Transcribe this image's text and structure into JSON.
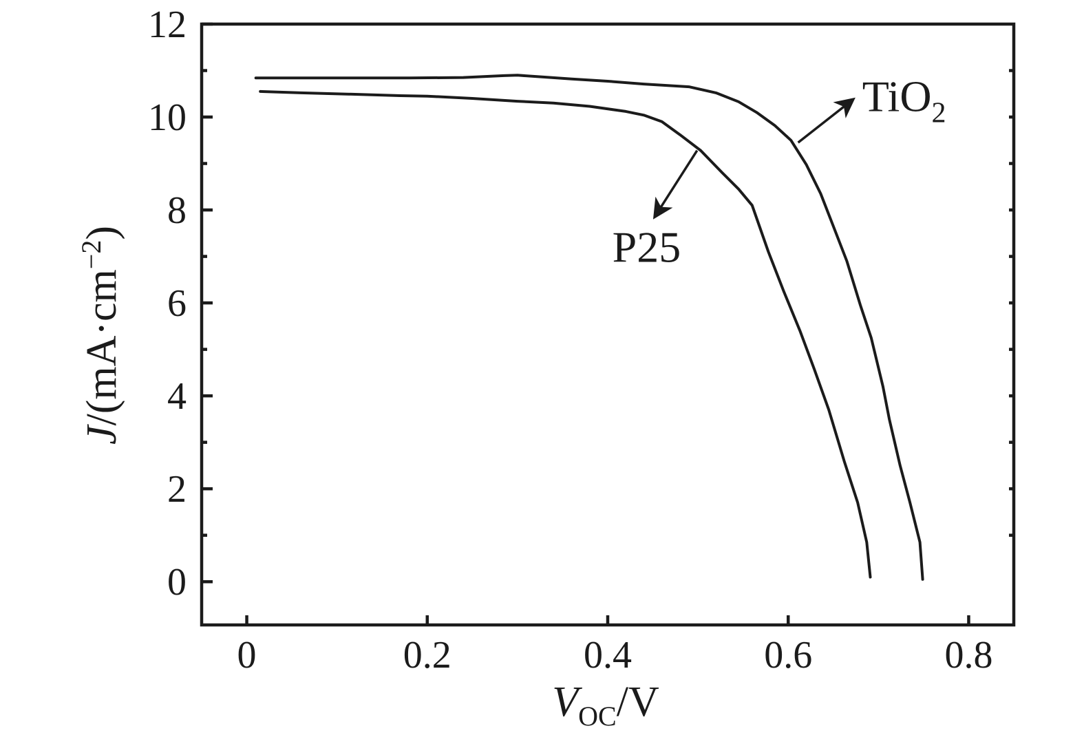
{
  "figure": {
    "background_color": "#ffffff",
    "ink_color": "#1b1b1b",
    "description": "J-V characteristic curves of dye-sensitized solar cells comparing TiO2 and P25 photoanodes"
  },
  "chart_data": {
    "type": "line",
    "title": "",
    "xlabel_parts": {
      "var": "V",
      "sub": "OC",
      "rest": "/V"
    },
    "ylabel_parts": {
      "var": "J",
      "pre": "/(mA·cm",
      "sup": "−2",
      "post": ")"
    },
    "xlim": [
      -0.05,
      0.85
    ],
    "ylim": [
      -0.93,
      12
    ],
    "grid": false,
    "legend_position": "none",
    "x_ticks": [
      {
        "v": 0.0,
        "label": "0"
      },
      {
        "v": 0.2,
        "label": "0.2"
      },
      {
        "v": 0.4,
        "label": "0.4"
      },
      {
        "v": 0.6,
        "label": "0.6"
      },
      {
        "v": 0.8,
        "label": "0.8"
      }
    ],
    "y_ticks": [
      {
        "v": 0,
        "label": "0"
      },
      {
        "v": 2,
        "label": "2"
      },
      {
        "v": 4,
        "label": "4"
      },
      {
        "v": 6,
        "label": "6"
      },
      {
        "v": 8,
        "label": "8"
      },
      {
        "v": 10,
        "label": "10"
      },
      {
        "v": 12,
        "label": "12"
      }
    ],
    "y_minor_ticks": [
      1,
      3,
      5,
      7,
      9,
      11
    ],
    "y_right_ticks": [
      1,
      2,
      3,
      4,
      5,
      6,
      7,
      8,
      9,
      10,
      11
    ],
    "series": [
      {
        "name": "TiO2",
        "color": "#1b1b1b",
        "points": [
          [
            0.01,
            10.84
          ],
          [
            0.06,
            10.84
          ],
          [
            0.12,
            10.84
          ],
          [
            0.18,
            10.84
          ],
          [
            0.24,
            10.85
          ],
          [
            0.285,
            10.89
          ],
          [
            0.3,
            10.9
          ],
          [
            0.33,
            10.86
          ],
          [
            0.36,
            10.82
          ],
          [
            0.4,
            10.77
          ],
          [
            0.44,
            10.71
          ],
          [
            0.49,
            10.65
          ],
          [
            0.52,
            10.52
          ],
          [
            0.545,
            10.33
          ],
          [
            0.565,
            10.1
          ],
          [
            0.585,
            9.82
          ],
          [
            0.603,
            9.5
          ],
          [
            0.62,
            8.98
          ],
          [
            0.636,
            8.35
          ],
          [
            0.65,
            7.65
          ],
          [
            0.665,
            6.9
          ],
          [
            0.68,
            5.95
          ],
          [
            0.692,
            5.25
          ],
          [
            0.705,
            4.2
          ],
          [
            0.712,
            3.5
          ],
          [
            0.724,
            2.5
          ],
          [
            0.735,
            1.7
          ],
          [
            0.746,
            0.85
          ],
          [
            0.749,
            0.05
          ]
        ]
      },
      {
        "name": "P25",
        "color": "#1b1b1b",
        "points": [
          [
            0.015,
            10.55
          ],
          [
            0.06,
            10.52
          ],
          [
            0.12,
            10.49
          ],
          [
            0.17,
            10.46
          ],
          [
            0.2,
            10.45
          ],
          [
            0.25,
            10.4
          ],
          [
            0.3,
            10.34
          ],
          [
            0.34,
            10.3
          ],
          [
            0.38,
            10.23
          ],
          [
            0.42,
            10.12
          ],
          [
            0.44,
            10.04
          ],
          [
            0.46,
            9.9
          ],
          [
            0.48,
            9.62
          ],
          [
            0.503,
            9.28
          ],
          [
            0.527,
            8.8
          ],
          [
            0.545,
            8.45
          ],
          [
            0.56,
            8.1
          ],
          [
            0.578,
            7.1
          ],
          [
            0.595,
            6.25
          ],
          [
            0.613,
            5.4
          ],
          [
            0.629,
            4.57
          ],
          [
            0.645,
            3.7
          ],
          [
            0.662,
            2.6
          ],
          [
            0.677,
            1.7
          ],
          [
            0.687,
            0.85
          ],
          [
            0.691,
            0.1
          ]
        ]
      }
    ],
    "annotations": [
      {
        "name": "tio2",
        "label_main": "TiO",
        "label_sub": "2",
        "label_at": [
          0.682,
          10.13
        ],
        "label_anchor": "start",
        "arrow_from": [
          0.611,
          9.45
        ],
        "arrow_to": [
          0.672,
          10.38
        ]
      },
      {
        "name": "p25",
        "label_main": "P25",
        "label_sub": "",
        "label_at": [
          0.443,
          6.88
        ],
        "label_anchor": "middle",
        "arrow_from": [
          0.499,
          9.28
        ],
        "arrow_to": [
          0.452,
          7.85
        ]
      }
    ]
  }
}
